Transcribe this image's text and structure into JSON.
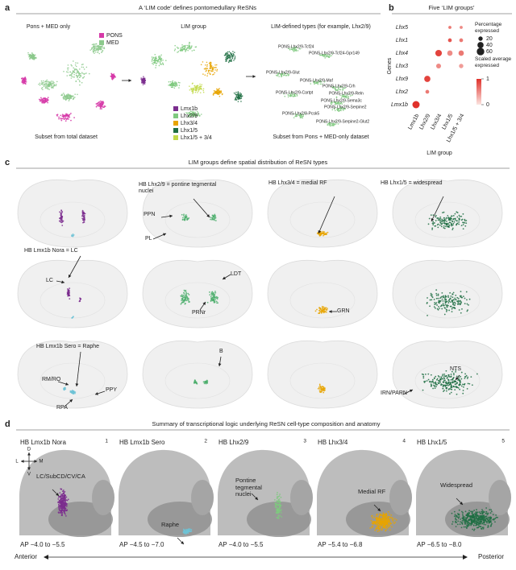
{
  "panel_a": {
    "label": "a",
    "title": "A ‘LIM code’ defines pontomedullary ReSNs",
    "umap_1": {
      "title": "Pons + MED only",
      "legend": [
        {
          "name": "PONS",
          "color": "#d63aa8"
        },
        {
          "name": "MED",
          "color": "#8cc98c"
        }
      ],
      "caption": "Subset from total dataset"
    },
    "umap_2": {
      "title": "LIM group",
      "legend": [
        {
          "name": "Lmx1b",
          "color": "#7b2d8e"
        },
        {
          "name": "Lhx2/9",
          "color": "#7fc97f"
        },
        {
          "name": "Lhx3/4",
          "color": "#e8a400"
        },
        {
          "name": "Lhx1/5",
          "color": "#1f6e43"
        },
        {
          "name": "Lhx1/5 + 3/4",
          "color": "#c2d94a"
        }
      ]
    },
    "umap_3": {
      "title": "LIM-defined types (for example, Lhx2/9)",
      "clusters": [
        "PONS-Lhx2/9-Tcf24",
        "PONS-Lhx2/9-Tcf24-Gpr149",
        "PONS-Lhx2/9-Glut",
        "PONS-Lhx2/9-Maf",
        "PONS-Lhx2/9-Crh",
        "PONS-Lhx2/9-Cartpt",
        "PONS-Lhx2/9-Reln",
        "PONS-Lhx2/9-Sema3c",
        "PONS-Lhx2/9-Serpine2",
        "PONS-Lhx2/9-Pcsk5",
        "PONS-Lhx2/9-Serpine2-Glut2"
      ],
      "caption": "Subset from Pons + MED-only dataset"
    }
  },
  "chart_data": {
    "type": "dot",
    "label": "b",
    "title": "Five ‘LIM groups’",
    "groups": [
      "Lmx1b",
      "Lhx2/9",
      "Lhx3/4",
      "Lhx1/5",
      "Lhx1/5 + 3/4"
    ],
    "genes": [
      "Lhx5",
      "Lhx1",
      "Lhx4",
      "Lhx3",
      "Lhx9",
      "Lhx2",
      "Lmx1b"
    ],
    "percent": [
      [
        null,
        null,
        null,
        10,
        10
      ],
      [
        null,
        null,
        null,
        15,
        15
      ],
      [
        null,
        null,
        45,
        30,
        30
      ],
      [
        null,
        null,
        25,
        null,
        20
      ],
      [
        null,
        40,
        null,
        null,
        null
      ],
      [
        null,
        15,
        null,
        null,
        null
      ],
      [
        55,
        null,
        null,
        null,
        null
      ]
    ],
    "scaled": [
      [
        null,
        null,
        null,
        0.6,
        0.5
      ],
      [
        null,
        null,
        null,
        0.8,
        0.6
      ],
      [
        null,
        null,
        0.9,
        0.5,
        0.6
      ],
      [
        null,
        null,
        0.5,
        null,
        0.4
      ],
      [
        null,
        0.9,
        null,
        null,
        null
      ],
      [
        null,
        0.6,
        null,
        null,
        null
      ],
      [
        1,
        null,
        null,
        null,
        null
      ]
    ],
    "xlabel": "LIM group",
    "ylabel": "Genes",
    "size_legend_title": "Percentage expressed",
    "size_ticks": [
      20,
      40,
      60
    ],
    "color_legend_title": "Scaled average expressed",
    "color_ticks": [
      1,
      0
    ],
    "colors": [
      "#fbe4e0",
      "#e0312b"
    ]
  },
  "panel_c": {
    "label": "c",
    "title": "LIM groups define spatial distribution of ReSN types",
    "annotations": [
      "HB Lhx2/9 = pontine tegmental nuclei",
      "HB Lhx3/4 = medial RF",
      "HB Lhx1/5 = widespread",
      "PPN",
      "PL",
      "HB Lmx1b Nora = LC",
      "LC",
      "LDT",
      "PRNr",
      "GRN",
      "HB Lmx1b Sero = Raphe",
      "RM/RO",
      "PPY",
      "RPA",
      "B",
      "NTS",
      "IRN/PARN"
    ]
  },
  "panel_d": {
    "label": "d",
    "title": "Summary of transcriptional logic underlying ReSN cell-type composition and anatomy",
    "orientation": [
      "D",
      "V",
      "L",
      "M"
    ],
    "panels": [
      {
        "title": "HB Lmx1b Nora",
        "number": 1,
        "annotation": "LC/SubCD/CV/CA",
        "ap": "AP −4.0 to −5.5",
        "color": "#7b2d8e"
      },
      {
        "title": "HB Lmx1b Sero",
        "number": 2,
        "annotation": "Raphe",
        "ap": "AP −4.5 to −7.0",
        "color": "#6fc3d6"
      },
      {
        "title": "HB Lhx2/9",
        "number": 3,
        "annotation": "Pontine tegmental nuclei",
        "ap": "AP −4.0 to −5.5",
        "color": "#7fc97f"
      },
      {
        "title": "HB Lhx3/4",
        "number": 4,
        "annotation": "Medial RF",
        "ap": "AP −5.4 to −6.8",
        "color": "#e8a400"
      },
      {
        "title": "HB Lhx1/5",
        "number": 5,
        "annotation": "Widespread",
        "ap": "AP −6.5 to −8.0",
        "color": "#1f6e43"
      }
    ],
    "anterior": "Anterior",
    "posterior": "Posterior"
  }
}
